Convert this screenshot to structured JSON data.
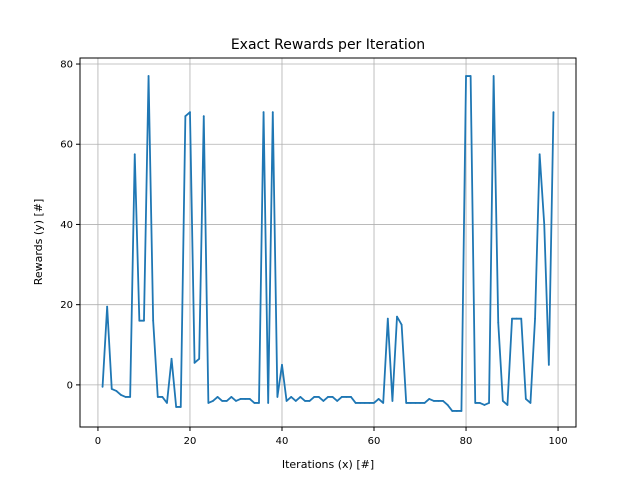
{
  "chart_data": {
    "type": "line",
    "title": "Exact Rewards per Iteration",
    "xlabel": "Iterations (x) [#]",
    "ylabel": "Rewards (y) [#]",
    "xlim": [
      -3.9,
      103.9
    ],
    "ylim": [
      -10.5,
      81.5
    ],
    "xticks": [
      0,
      20,
      40,
      60,
      80,
      100
    ],
    "yticks": [
      0,
      20,
      40,
      60,
      80
    ],
    "grid": true,
    "legend": "none",
    "color": "#1f77b4",
    "series": [
      {
        "x": [
          1,
          2,
          3,
          4,
          5,
          6,
          7,
          8,
          9,
          10,
          11,
          12,
          13,
          14,
          15,
          16,
          17,
          18,
          19,
          20,
          21,
          22,
          23,
          24,
          25,
          26,
          27,
          28,
          29,
          30,
          31,
          32,
          33,
          34,
          35,
          36,
          37,
          38,
          39,
          40,
          41,
          42,
          43,
          44,
          45,
          46,
          47,
          48,
          49,
          50,
          51,
          52,
          53,
          54,
          55,
          56,
          57,
          58,
          59,
          60,
          61,
          62,
          63,
          64,
          65,
          66,
          67,
          68,
          69,
          70,
          71,
          72,
          73,
          74,
          75,
          76,
          77,
          78,
          79,
          80,
          81,
          82,
          83,
          84,
          85,
          86,
          87,
          88,
          89,
          90,
          91,
          92,
          93,
          94,
          95,
          96,
          97,
          98,
          99
        ],
        "y": [
          -0.5,
          19.5,
          -1,
          -1.5,
          -2.5,
          -3,
          -3,
          57.5,
          16,
          16,
          77,
          16,
          -3,
          -3,
          -4.5,
          6.5,
          -5.5,
          -5.5,
          67,
          68,
          5.5,
          6.5,
          67,
          -4.5,
          -4,
          -3,
          -4,
          -4,
          -3,
          -4,
          -3.5,
          -3.5,
          -3.5,
          -4.5,
          -4.5,
          68,
          -4.5,
          68,
          -3,
          5,
          -4,
          -3,
          -4,
          -3,
          -4,
          -4,
          -3,
          -3,
          -4,
          -3,
          -3,
          -4,
          -3,
          -3,
          -3,
          -4.5,
          -4.5,
          -4.5,
          -4.5,
          -4.5,
          -3.5,
          -4.5,
          16.5,
          -4,
          17,
          15,
          -4.5,
          -4.5,
          -4.5,
          -4.5,
          -4.5,
          -3.5,
          -4,
          -4,
          -4,
          -5,
          -6.5,
          -6.5,
          -6.5,
          77,
          77,
          -4.5,
          -4.5,
          -5,
          -4.5,
          77,
          15.5,
          -4,
          -5,
          16.5,
          16.5,
          16.5,
          -3.5,
          -4.5,
          16.5,
          57.5,
          40,
          5,
          68
        ]
      }
    ]
  }
}
